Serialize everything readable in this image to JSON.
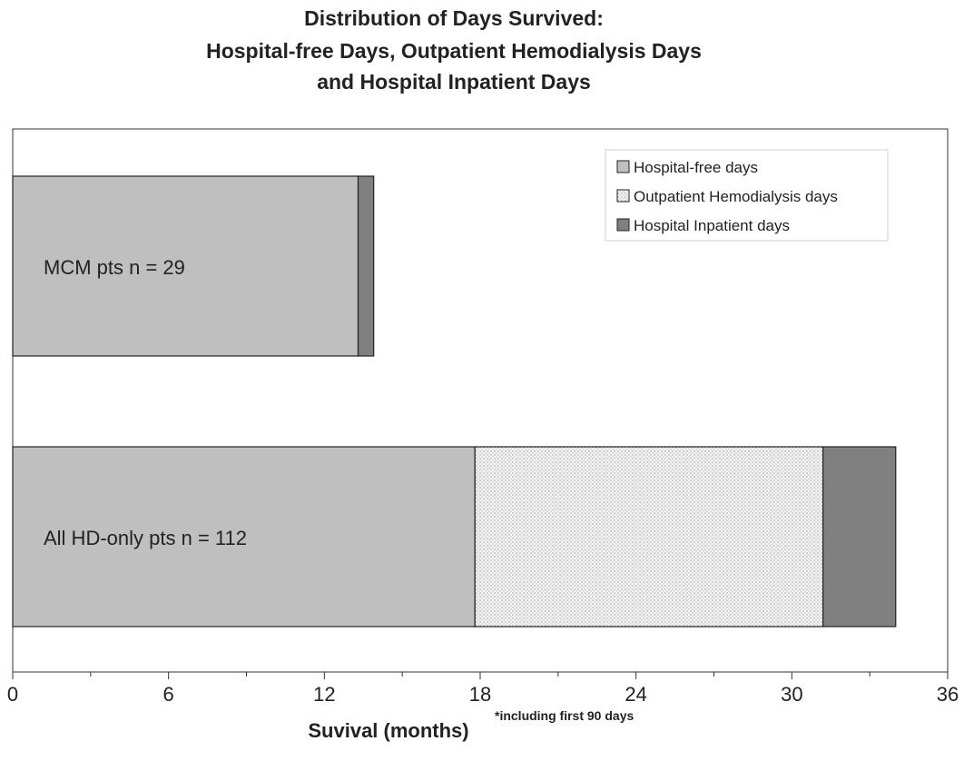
{
  "chart_data": {
    "type": "bar",
    "orientation": "horizontal",
    "stacked": true,
    "title": [
      "Distribution of Days Survived:",
      "Hospital-free Days, Outpatient Hemodialysis Days",
      "and Hospital Inpatient Days"
    ],
    "categories": [
      "MCM pts n = 29",
      "All HD-only pts n = 112"
    ],
    "series": [
      {
        "name": "Hospital-free days",
        "values": [
          13.3,
          17.8
        ],
        "color": "#bfbfbf",
        "pattern": "solid"
      },
      {
        "name": "Outpatient Hemodialysis days",
        "values": [
          0,
          13.4
        ],
        "color": "#f2f2f2",
        "pattern": "dotted"
      },
      {
        "name": "Hospital Inpatient days",
        "values": [
          0.6,
          2.8
        ],
        "color": "#808080",
        "pattern": "solid"
      }
    ],
    "xlabel": "Suvival (months)",
    "xlabel_note": "*including first 90 days",
    "xlim": [
      0,
      36
    ],
    "xticks": [
      0,
      6,
      12,
      18,
      24,
      30,
      36
    ],
    "minor_tick_step": 3,
    "grid": false,
    "legend_position": "top-right"
  }
}
